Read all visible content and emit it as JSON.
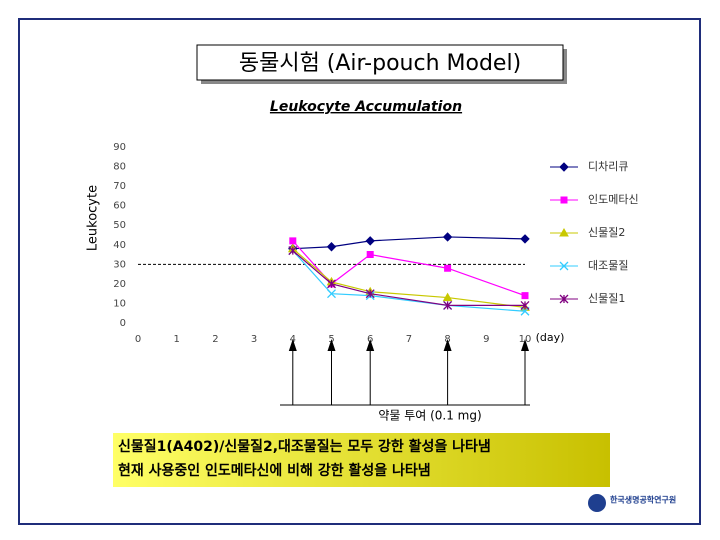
{
  "header": {
    "title": "동물시험 (Air-pouch Model)"
  },
  "chart_data": {
    "type": "line",
    "title": "Leukocyte Accumulation",
    "ylabel": "Leukocyte",
    "xunit": "(day)",
    "xlim": [
      0,
      10
    ],
    "xticks": [
      0,
      1,
      2,
      3,
      4,
      5,
      6,
      7,
      8,
      9,
      10
    ],
    "ylim": [
      0,
      90
    ],
    "yticks": [
      0,
      10,
      20,
      30,
      40,
      50,
      60,
      70,
      80,
      90
    ],
    "reference_line": 30,
    "dose_days": [
      4,
      5,
      6,
      8,
      10
    ],
    "dose_label": "약물 투여 (0.1 mg)",
    "x": [
      4,
      5,
      6,
      8,
      10
    ],
    "series": [
      {
        "name": "디차리큐",
        "color": "#000080",
        "marker": "diamond",
        "values": [
          38,
          39,
          42,
          44,
          43
        ]
      },
      {
        "name": "인도메타신",
        "color": "#ff00ff",
        "marker": "square",
        "values": [
          42,
          20,
          35,
          28,
          14
        ]
      },
      {
        "name": "신물질2",
        "color": "#c8c800",
        "marker": "triangle",
        "values": [
          38,
          21,
          16,
          13,
          8
        ]
      },
      {
        "name": "대조물질",
        "color": "#33ccff",
        "marker": "x",
        "values": [
          37,
          15,
          14,
          9,
          6
        ]
      },
      {
        "name": "신물질1",
        "color": "#800080",
        "marker": "star",
        "values": [
          37,
          20,
          15,
          9,
          9
        ]
      }
    ]
  },
  "callout": {
    "lines": [
      "신물질1(A402)/신물질2,대조물질는 모두 강한 활성을 나타냄",
      "현재 사용중인 인도메타신에 비해 강한 활성을 나타냄"
    ]
  },
  "logo": {
    "name": "한국생명공학연구원"
  }
}
